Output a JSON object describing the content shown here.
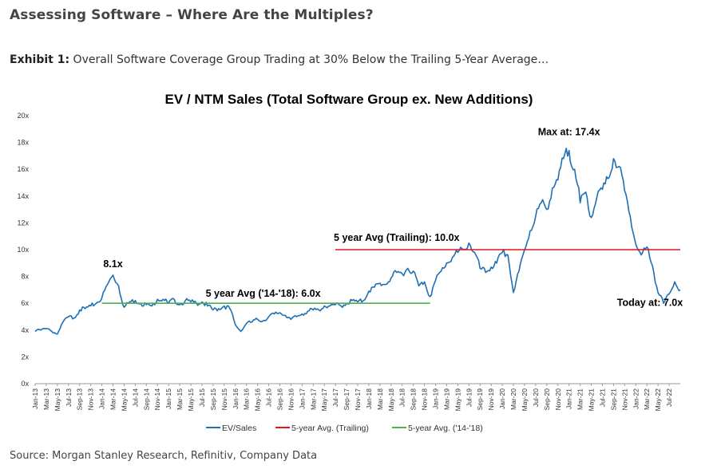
{
  "header": {
    "title": "Assessing Software – Where Are the Multiples?",
    "exhibit_label": "Exhibit 1:",
    "exhibit_text": " Overall Software Coverage Group Trading at 30% Below the Trailing 5-Year Average…"
  },
  "source": "Source: Morgan Stanley Research, Refinitiv, Company Data",
  "colors": {
    "ev_sales": "#1f6fb5",
    "trailing_avg": "#e8141c",
    "avg_14_18": "#4caf50"
  },
  "chart_data": {
    "type": "line",
    "title": "EV / NTM Sales (Total Software Group ex. New Additions)",
    "y_ticks": [
      "0x",
      "2x",
      "4x",
      "6x",
      "8x",
      "10x",
      "12x",
      "14x",
      "16x",
      "18x",
      "20x"
    ],
    "ylim": [
      0,
      20
    ],
    "x_range": [
      "2013-01",
      "2022-09"
    ],
    "x_ticks": [
      "Jan-13",
      "Mar-13",
      "May-13",
      "Jul-13",
      "Sep-13",
      "Nov-13",
      "Jan-14",
      "Mar-14",
      "May-14",
      "Jul-14",
      "Sep-14",
      "Nov-14",
      "Jan-15",
      "Mar-15",
      "May-15",
      "Jul-15",
      "Sep-15",
      "Nov-15",
      "Jan-16",
      "Mar-16",
      "May-16",
      "Jul-16",
      "Sep-16",
      "Nov-16",
      "Jan-17",
      "Mar-17",
      "May-17",
      "Jul-17",
      "Sep-17",
      "Nov-17",
      "Jan-18",
      "Mar-18",
      "May-18",
      "Jul-18",
      "Sep-18",
      "Nov-18",
      "Jan-19",
      "Mar-19",
      "May-19",
      "Jul-19",
      "Sep-19",
      "Nov-19",
      "Jan-20",
      "Mar-20",
      "May-20",
      "Jul-20",
      "Sep-20",
      "Nov-20",
      "Jan-21",
      "Mar-21",
      "May-21",
      "Jul-21",
      "Sep-21",
      "Nov-21",
      "Jan-22",
      "Mar-22",
      "May-22",
      "Jul-22"
    ],
    "series": [
      {
        "name": "EV/Sales",
        "points": [
          [
            "2013-01",
            3.9
          ],
          [
            "2013-03",
            4.1
          ],
          [
            "2013-04",
            3.9
          ],
          [
            "2013-05",
            3.7
          ],
          [
            "2013-06",
            4.6
          ],
          [
            "2013-07",
            5.0
          ],
          [
            "2013-08",
            4.9
          ],
          [
            "2013-09",
            5.5
          ],
          [
            "2013-10",
            5.6
          ],
          [
            "2013-11",
            5.8
          ],
          [
            "2013-12",
            6.0
          ],
          [
            "2014-01",
            6.4
          ],
          [
            "2014-02",
            7.4
          ],
          [
            "2014-03",
            8.1
          ],
          [
            "2014-04",
            7.3
          ],
          [
            "2014-05",
            5.7
          ],
          [
            "2014-06",
            6.1
          ],
          [
            "2014-07",
            6.2
          ],
          [
            "2014-08",
            6.0
          ],
          [
            "2014-09",
            5.9
          ],
          [
            "2014-10",
            5.8
          ],
          [
            "2014-11",
            6.3
          ],
          [
            "2014-12",
            6.3
          ],
          [
            "2015-01",
            6.0
          ],
          [
            "2015-02",
            6.3
          ],
          [
            "2015-03",
            5.9
          ],
          [
            "2015-04",
            6.2
          ],
          [
            "2015-05",
            6.1
          ],
          [
            "2015-06",
            6.0
          ],
          [
            "2015-07",
            6.1
          ],
          [
            "2015-08",
            5.8
          ],
          [
            "2015-09",
            5.5
          ],
          [
            "2015-10",
            5.6
          ],
          [
            "2015-11",
            5.8
          ],
          [
            "2015-12",
            5.6
          ],
          [
            "2016-01",
            4.4
          ],
          [
            "2016-02",
            3.9
          ],
          [
            "2016-03",
            4.5
          ],
          [
            "2016-04",
            4.6
          ],
          [
            "2016-05",
            4.8
          ],
          [
            "2016-06",
            4.7
          ],
          [
            "2016-07",
            5.0
          ],
          [
            "2016-08",
            5.2
          ],
          [
            "2016-09",
            5.3
          ],
          [
            "2016-10",
            5.1
          ],
          [
            "2016-11",
            4.8
          ],
          [
            "2016-12",
            5.0
          ],
          [
            "2017-01",
            5.2
          ],
          [
            "2017-02",
            5.4
          ],
          [
            "2017-03",
            5.5
          ],
          [
            "2017-04",
            5.5
          ],
          [
            "2017-05",
            5.8
          ],
          [
            "2017-06",
            5.8
          ],
          [
            "2017-07",
            5.9
          ],
          [
            "2017-08",
            5.8
          ],
          [
            "2017-09",
            6.0
          ],
          [
            "2017-10",
            6.2
          ],
          [
            "2017-11",
            6.1
          ],
          [
            "2017-12",
            6.2
          ],
          [
            "2018-01",
            6.9
          ],
          [
            "2018-02",
            7.2
          ],
          [
            "2018-03",
            7.5
          ],
          [
            "2018-04",
            7.4
          ],
          [
            "2018-05",
            7.9
          ],
          [
            "2018-06",
            8.3
          ],
          [
            "2018-07",
            8.2
          ],
          [
            "2018-08",
            8.6
          ],
          [
            "2018-09",
            8.4
          ],
          [
            "2018-10",
            7.3
          ],
          [
            "2018-11",
            7.6
          ],
          [
            "2018-12",
            6.5
          ],
          [
            "2019-01",
            7.7
          ],
          [
            "2019-02",
            8.4
          ],
          [
            "2019-03",
            9.0
          ],
          [
            "2019-04",
            9.4
          ],
          [
            "2019-05",
            9.8
          ],
          [
            "2019-06",
            10.0
          ],
          [
            "2019-07",
            10.5
          ],
          [
            "2019-08",
            9.8
          ],
          [
            "2019-09",
            8.6
          ],
          [
            "2019-10",
            8.3
          ],
          [
            "2019-11",
            8.7
          ],
          [
            "2019-12",
            9.0
          ],
          [
            "2020-01",
            9.8
          ],
          [
            "2020-02",
            9.6
          ],
          [
            "2020-03",
            6.8
          ],
          [
            "2020-04",
            8.4
          ],
          [
            "2020-05",
            10.0
          ],
          [
            "2020-06",
            11.4
          ],
          [
            "2020-07",
            12.5
          ],
          [
            "2020-08",
            13.5
          ],
          [
            "2020-09",
            13.0
          ],
          [
            "2020-10",
            14.6
          ],
          [
            "2020-11",
            15.2
          ],
          [
            "2020-12",
            16.8
          ],
          [
            "2021-01",
            17.4
          ],
          [
            "2021-02",
            16.0
          ],
          [
            "2021-03",
            13.5
          ],
          [
            "2021-04",
            14.3
          ],
          [
            "2021-05",
            12.4
          ],
          [
            "2021-06",
            13.9
          ],
          [
            "2021-07",
            14.5
          ],
          [
            "2021-08",
            15.3
          ],
          [
            "2021-09",
            16.8
          ],
          [
            "2021-10",
            16.2
          ],
          [
            "2021-11",
            14.4
          ],
          [
            "2021-12",
            12.5
          ],
          [
            "2022-01",
            10.4
          ],
          [
            "2022-02",
            9.6
          ],
          [
            "2022-03",
            10.2
          ],
          [
            "2022-04",
            8.8
          ],
          [
            "2022-05",
            6.8
          ],
          [
            "2022-06",
            6.0
          ],
          [
            "2022-07",
            6.7
          ],
          [
            "2022-08",
            7.6
          ],
          [
            "2022-09",
            7.0
          ]
        ]
      },
      {
        "name": "5-year Avg. (Trailing)",
        "points": [
          [
            "2017-07",
            10.0
          ],
          [
            "2022-09",
            10.0
          ]
        ]
      },
      {
        "name": "5-year Avg. ('14-'18)",
        "points": [
          [
            "2014-01",
            6.0
          ],
          [
            "2018-12",
            6.0
          ]
        ]
      }
    ],
    "legend": [
      "EV/Sales",
      "5-year Avg. (Trailing)",
      "5-year Avg. ('14-'18)"
    ],
    "legend_position": "bottom",
    "annotations": [
      {
        "text": "8.1x",
        "x": "2014-03",
        "y": 8.1
      },
      {
        "text": "5 year Avg ('14-'18): 6.0x",
        "x": "2016-06",
        "y": 6.0
      },
      {
        "text": "5 year Avg (Trailing): 10.0x",
        "x": "2018-06",
        "y": 10.0
      },
      {
        "text": "Max at: 17.4x",
        "x": "2021-01",
        "y": 17.4
      },
      {
        "text": "Today at: 7.0x",
        "x": "2022-09",
        "y": 7.0
      }
    ]
  }
}
